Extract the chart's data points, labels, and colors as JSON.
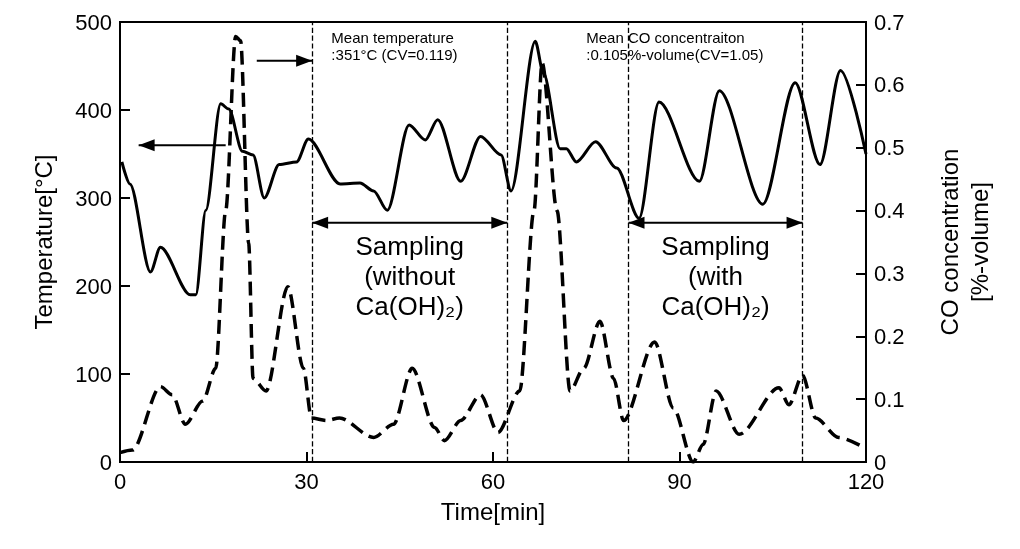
{
  "chart_data": {
    "type": "line",
    "xlabel": "Time[min]",
    "ylabel": "Temperature[°C]",
    "y2label": "CO concentration\n[%-volume]",
    "xlim": [
      0,
      120
    ],
    "xticks": [
      0,
      30,
      60,
      90,
      120
    ],
    "ylim": [
      0,
      500
    ],
    "yticks": [
      0,
      100,
      200,
      300,
      400,
      500
    ],
    "y2lim": [
      0,
      0.7
    ],
    "y2ticks": [
      0,
      0.1,
      0.2,
      0.3,
      0.4,
      0.5,
      0.6,
      0.7
    ],
    "grid": false,
    "marker": "none",
    "series": [
      {
        "color": "#000000",
        "line_style": "solid",
        "x": [
          0.3,
          1.6,
          4.9,
          6.5,
          11.3,
          12.2,
          13.8,
          16.2,
          17.5,
          19.7,
          21.4,
          23.2,
          25.6,
          28.4,
          30.3,
          35.4,
          38.6,
          40.8,
          43,
          46.5,
          49.1,
          51.1,
          54.8,
          58,
          61.3,
          62.9,
          66.8,
          68.1,
          70.8,
          71.8,
          73.4,
          76.5,
          79.9,
          83.5,
          86.7,
          93.2,
          96.4,
          103.4,
          108.6,
          112.6,
          115.9,
          120
        ],
        "values": [
          341,
          316,
          216,
          244,
          190,
          190,
          286,
          407,
          401,
          353,
          349,
          300,
          338,
          341,
          367,
          316,
          317,
          308,
          286,
          383,
          366,
          389,
          319,
          370,
          349,
          308,
          478,
          442,
          356,
          356,
          341,
          364,
          334,
          277,
          409,
          319,
          422,
          293,
          431,
          338,
          445,
          350
        ]
      },
      {
        "color": "#000000",
        "line_style": "dashed",
        "axis": "y2",
        "x": [
          0,
          2,
          6.5,
          8.4,
          10.5,
          13.3,
          15.4,
          17,
          18.6,
          19.4,
          20.7,
          21.4,
          23.5,
          27,
          29.5,
          30.8,
          33.2,
          35.3,
          40.8,
          44,
          47,
          50.6,
          52.2,
          54.8,
          58,
          60.8,
          64.3,
          66.6,
          67.9,
          70.3,
          72.4,
          74.6,
          77.2,
          79.4,
          81,
          86,
          89,
          92.2,
          93.8,
          95.9,
          99.6,
          106,
          107.6,
          109.8,
          111.9,
          115.6,
          119.5
        ],
        "values": [
          0.015,
          0.019,
          0.12,
          0.107,
          0.06,
          0.097,
          0.149,
          0.4,
          0.677,
          0.67,
          0.348,
          0.133,
          0.113,
          0.279,
          0.149,
          0.07,
          0.066,
          0.07,
          0.039,
          0.06,
          0.149,
          0.055,
          0.034,
          0.066,
          0.107,
          0.047,
          0.113,
          0.4,
          0.635,
          0.4,
          0.113,
          0.149,
          0.224,
          0.133,
          0.066,
          0.191,
          0.086,
          0,
          0.028,
          0.113,
          0.044,
          0.118,
          0.091,
          0.138,
          0.07,
          0.039,
          0.024
        ]
      }
    ],
    "ref_lines": [
      {
        "axis": "x",
        "value": 30.9,
        "color": "#000000",
        "line_style": "dashed"
      },
      {
        "axis": "x",
        "value": 62.3,
        "color": "#000000",
        "line_style": "dashed"
      },
      {
        "axis": "x",
        "value": 81.8,
        "color": "#000000",
        "line_style": "dashed"
      },
      {
        "axis": "x",
        "value": 109.8,
        "color": "#000000",
        "line_style": "dashed"
      }
    ],
    "annotations": [
      "Mean temperature\n:351°C (CV=0.119)",
      "Mean CO concentraiton\n:0.105%-volume(CV=1.05)",
      "Sampling\n(without\nCa(OH)₂)",
      "Sampling\n(with\nCa(OH)₂)"
    ]
  }
}
